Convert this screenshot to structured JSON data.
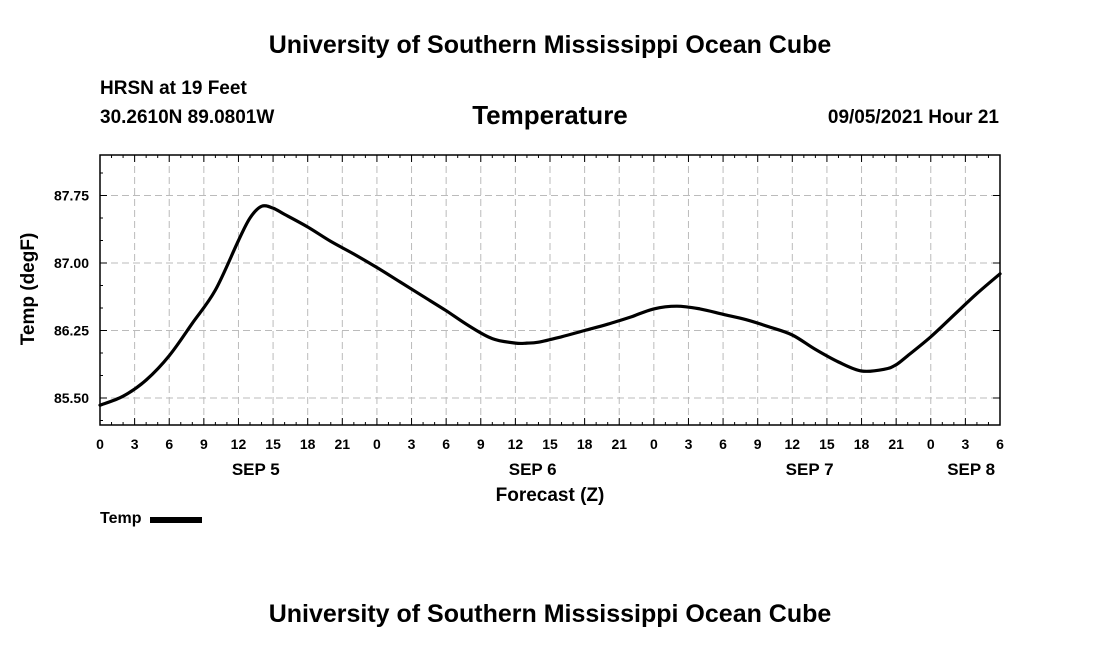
{
  "header": {
    "title": "University of Southern Mississippi Ocean Cube",
    "station": "HRSN at 19 Feet",
    "coordinates": "30.2610N  89.0801W",
    "timestamp": "09/05/2021 Hour 21"
  },
  "footer": {
    "title": "University of Southern Mississippi Ocean Cube"
  },
  "legend": {
    "label": "Temp",
    "color": "#000000"
  },
  "chart_data": {
    "type": "line",
    "title": "Temperature",
    "xlabel": "Forecast (Z)",
    "ylabel": "Temp (degF)",
    "x_unit": "hours since SEP 5 00Z",
    "xlim": [
      0,
      78
    ],
    "ylim": [
      85.2,
      88.2
    ],
    "grid": true,
    "x_tick_labels": [
      "0",
      "3",
      "6",
      "9",
      "12",
      "15",
      "18",
      "21",
      "0",
      "3",
      "6",
      "9",
      "12",
      "15",
      "18",
      "21",
      "0",
      "3",
      "6",
      "9",
      "12",
      "15",
      "18",
      "21",
      "0",
      "3",
      "6"
    ],
    "date_labels": [
      {
        "label": "SEP 5",
        "hour": 13.5
      },
      {
        "label": "SEP 6",
        "hour": 37.5
      },
      {
        "label": "SEP 7",
        "hour": 61.5
      },
      {
        "label": "SEP 8",
        "hour": 75.5
      }
    ],
    "y_ticks": [
      85.5,
      86.25,
      87.0,
      87.75
    ],
    "y_tick_labels": [
      "85.50",
      "86.25",
      "87.00",
      "87.75"
    ],
    "series": [
      {
        "name": "Temp",
        "color": "#000000",
        "x": [
          0,
          2,
          4,
          6,
          8,
          10,
          12,
          13,
          14,
          15,
          16,
          18,
          20,
          22,
          24,
          26,
          28,
          30,
          32,
          34,
          36,
          37,
          38,
          40,
          42,
          44,
          46,
          48,
          50,
          52,
          54,
          56,
          58,
          60,
          62,
          64,
          66,
          68,
          69,
          70,
          72,
          74,
          76,
          78
        ],
        "values": [
          85.42,
          85.52,
          85.7,
          85.97,
          86.33,
          86.7,
          87.25,
          87.5,
          87.63,
          87.61,
          87.54,
          87.4,
          87.24,
          87.1,
          86.95,
          86.79,
          86.63,
          86.47,
          86.3,
          86.16,
          86.11,
          86.11,
          86.12,
          86.18,
          86.25,
          86.32,
          86.4,
          86.49,
          86.52,
          86.49,
          86.43,
          86.37,
          86.29,
          86.2,
          86.04,
          85.9,
          85.8,
          85.82,
          85.87,
          85.97,
          86.18,
          86.42,
          86.66,
          86.88
        ]
      }
    ]
  }
}
